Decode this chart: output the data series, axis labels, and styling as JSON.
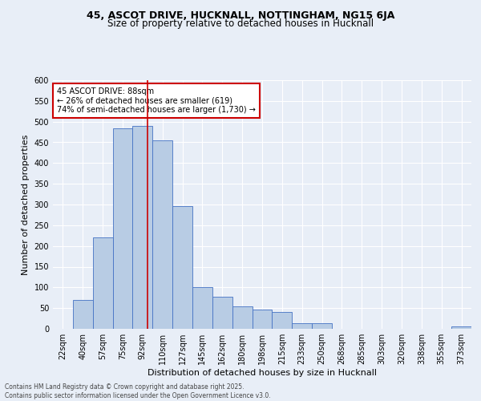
{
  "title1": "45, ASCOT DRIVE, HUCKNALL, NOTTINGHAM, NG15 6JA",
  "title2": "Size of property relative to detached houses in Hucknall",
  "xlabel": "Distribution of detached houses by size in Hucknall",
  "ylabel": "Number of detached properties",
  "footnote": "Contains HM Land Registry data © Crown copyright and database right 2025.\nContains public sector information licensed under the Open Government Licence v3.0.",
  "categories": [
    "22sqm",
    "40sqm",
    "57sqm",
    "75sqm",
    "92sqm",
    "110sqm",
    "127sqm",
    "145sqm",
    "162sqm",
    "180sqm",
    "198sqm",
    "215sqm",
    "233sqm",
    "250sqm",
    "268sqm",
    "285sqm",
    "303sqm",
    "320sqm",
    "338sqm",
    "355sqm",
    "373sqm"
  ],
  "values": [
    0,
    70,
    220,
    483,
    490,
    455,
    297,
    100,
    78,
    55,
    47,
    40,
    13,
    13,
    0,
    0,
    0,
    0,
    0,
    0,
    5
  ],
  "bar_color": "#b8cce4",
  "bar_edge_color": "#4472c4",
  "background_color": "#e8eef7",
  "grid_color": "#ffffff",
  "annotation_text": "45 ASCOT DRIVE: 88sqm\n← 26% of detached houses are smaller (619)\n74% of semi-detached houses are larger (1,730) →",
  "annotation_box_color": "#ffffff",
  "annotation_box_edge_color": "#cc0000",
  "vline_color": "#cc0000",
  "vline_x": 4.26,
  "ylim": [
    0,
    600
  ],
  "yticks": [
    0,
    50,
    100,
    150,
    200,
    250,
    300,
    350,
    400,
    450,
    500,
    550,
    600
  ],
  "title_fontsize": 9,
  "subtitle_fontsize": 8.5,
  "axis_label_fontsize": 8,
  "tick_fontsize": 7,
  "annot_fontsize": 7,
  "footnote_fontsize": 5.5
}
